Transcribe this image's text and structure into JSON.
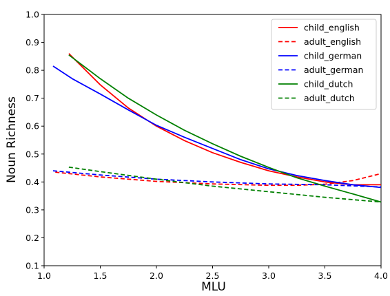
{
  "chart_data": {
    "type": "line",
    "title": "",
    "xlabel": "MLU",
    "ylabel": "Noun Richness",
    "xlim": [
      1.0,
      4.0
    ],
    "ylim": [
      0.1,
      1.0
    ],
    "xticks": [
      "1.0",
      "1.5",
      "2.0",
      "2.5",
      "3.0",
      "3.5",
      "4.0"
    ],
    "yticks": [
      "0.1",
      "0.2",
      "0.3",
      "0.4",
      "0.5",
      "0.6",
      "0.7",
      "0.8",
      "0.9",
      "1.0"
    ],
    "grid": false,
    "legend_position": "top-right",
    "series": [
      {
        "name": "child_english",
        "color": "#ff0000",
        "dash": "solid",
        "points": [
          [
            1.22,
            0.86
          ],
          [
            1.5,
            0.748
          ],
          [
            1.75,
            0.665
          ],
          [
            2.0,
            0.6
          ],
          [
            2.25,
            0.548
          ],
          [
            2.5,
            0.505
          ],
          [
            2.75,
            0.47
          ],
          [
            3.0,
            0.44
          ],
          [
            3.25,
            0.418
          ],
          [
            3.5,
            0.4
          ],
          [
            3.75,
            0.39
          ],
          [
            4.0,
            0.39
          ]
        ]
      },
      {
        "name": "adult_english",
        "color": "#ff0000",
        "dash": "dashed",
        "points": [
          [
            1.1,
            0.435
          ],
          [
            1.5,
            0.418
          ],
          [
            2.0,
            0.402
          ],
          [
            2.5,
            0.393
          ],
          [
            3.0,
            0.388
          ],
          [
            3.25,
            0.388
          ],
          [
            3.5,
            0.392
          ],
          [
            3.75,
            0.405
          ],
          [
            4.0,
            0.43
          ]
        ]
      },
      {
        "name": "child_german",
        "color": "#0000ff",
        "dash": "solid",
        "points": [
          [
            1.08,
            0.815
          ],
          [
            1.25,
            0.77
          ],
          [
            1.5,
            0.715
          ],
          [
            1.75,
            0.658
          ],
          [
            2.0,
            0.603
          ],
          [
            2.25,
            0.56
          ],
          [
            2.5,
            0.52
          ],
          [
            2.75,
            0.48
          ],
          [
            3.0,
            0.447
          ],
          [
            3.25,
            0.423
          ],
          [
            3.5,
            0.405
          ],
          [
            3.75,
            0.39
          ],
          [
            4.0,
            0.38
          ]
        ]
      },
      {
        "name": "adult_german",
        "color": "#0000ff",
        "dash": "dashed",
        "points": [
          [
            1.08,
            0.44
          ],
          [
            1.5,
            0.425
          ],
          [
            2.0,
            0.41
          ],
          [
            2.5,
            0.4
          ],
          [
            3.0,
            0.393
          ],
          [
            3.5,
            0.39
          ],
          [
            4.0,
            0.382
          ]
        ]
      },
      {
        "name": "child_dutch",
        "color": "#008000",
        "dash": "solid",
        "points": [
          [
            1.22,
            0.855
          ],
          [
            1.5,
            0.77
          ],
          [
            1.75,
            0.7
          ],
          [
            2.0,
            0.64
          ],
          [
            2.25,
            0.585
          ],
          [
            2.5,
            0.537
          ],
          [
            2.75,
            0.492
          ],
          [
            3.0,
            0.452
          ],
          [
            3.25,
            0.415
          ],
          [
            3.5,
            0.385
          ],
          [
            3.75,
            0.357
          ],
          [
            4.0,
            0.328
          ]
        ]
      },
      {
        "name": "adult_dutch",
        "color": "#008000",
        "dash": "dashed",
        "points": [
          [
            1.22,
            0.453
          ],
          [
            1.5,
            0.437
          ],
          [
            2.0,
            0.41
          ],
          [
            2.5,
            0.385
          ],
          [
            3.0,
            0.365
          ],
          [
            3.5,
            0.345
          ],
          [
            4.0,
            0.328
          ]
        ]
      }
    ]
  }
}
